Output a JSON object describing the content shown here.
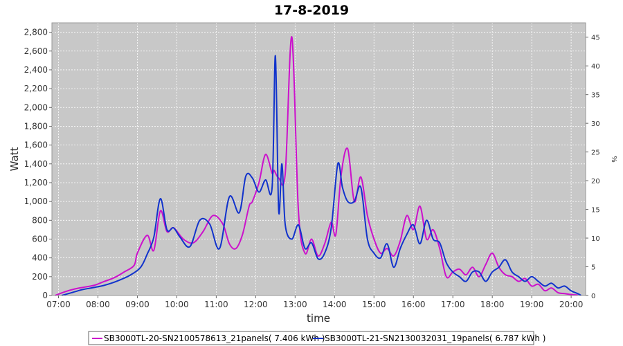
{
  "chart_data": {
    "type": "line",
    "title": "17-8-2019",
    "xlabel": "time",
    "ylabel": "Watt",
    "y2label": "%",
    "ylim": [
      0,
      2900
    ],
    "y2lim": [
      0,
      47.5
    ],
    "xlim": [
      "06:50",
      "20:22"
    ],
    "xticks": [
      "07:00",
      "08:00",
      "09:00",
      "10:00",
      "11:00",
      "12:00",
      "13:00",
      "14:00",
      "15:00",
      "16:00",
      "17:00",
      "18:00",
      "19:00",
      "20:00"
    ],
    "yticks": [
      "0",
      "200",
      "400",
      "600",
      "800",
      "1,000",
      "1,200",
      "1,400",
      "1,600",
      "1,800",
      "2,000",
      "2,200",
      "2,400",
      "2,600",
      "2,800"
    ],
    "y2ticks": [
      "0",
      "5",
      "10",
      "15",
      "20",
      "25",
      "30",
      "35",
      "40",
      "45"
    ],
    "grid": true,
    "legend": "bottom",
    "series": [
      {
        "name": "SB3000TL-20-SN2100578613_21panels( 7.406 kWh )",
        "color": "#cc11cc",
        "x": [
          "06:55",
          "07:10",
          "07:25",
          "07:40",
          "07:55",
          "08:10",
          "08:25",
          "08:40",
          "08:55",
          "09:00",
          "09:15",
          "09:25",
          "09:35",
          "09:45",
          "09:55",
          "10:10",
          "10:25",
          "10:40",
          "10:55",
          "11:10",
          "11:20",
          "11:30",
          "11:40",
          "11:50",
          "11:55",
          "12:05",
          "12:15",
          "12:25",
          "12:28",
          "12:35",
          "12:45",
          "12:55",
          "13:05",
          "13:15",
          "13:25",
          "13:35",
          "13:45",
          "13:55",
          "14:02",
          "14:10",
          "14:20",
          "14:30",
          "14:40",
          "14:50",
          "15:00",
          "15:10",
          "15:20",
          "15:30",
          "15:40",
          "15:50",
          "16:00",
          "16:10",
          "16:20",
          "16:30",
          "16:40",
          "16:50",
          "17:00",
          "17:10",
          "17:20",
          "17:30",
          "17:40",
          "17:50",
          "18:00",
          "18:10",
          "18:20",
          "18:30",
          "18:40",
          "18:50",
          "19:00",
          "19:10",
          "19:20",
          "19:30",
          "19:40",
          "19:50",
          "20:00",
          "20:10"
        ],
        "y": [
          0,
          40,
          70,
          90,
          110,
          150,
          190,
          250,
          320,
          450,
          640,
          480,
          900,
          680,
          720,
          600,
          560,
          680,
          850,
          760,
          550,
          500,
          650,
          950,
          1000,
          1200,
          1500,
          1300,
          1330,
          1250,
          1300,
          2750,
          900,
          450,
          600,
          420,
          550,
          780,
          650,
          1280,
          1560,
          1000,
          1260,
          850,
          600,
          450,
          500,
          420,
          580,
          850,
          700,
          950,
          600,
          700,
          500,
          200,
          250,
          280,
          220,
          300,
          200,
          330,
          450,
          300,
          220,
          200,
          150,
          180,
          100,
          120,
          50,
          80,
          30,
          20,
          10,
          5
        ]
      },
      {
        "name": "SB3000TL-21-SN2130032031_19panels( 6.787 kWh )",
        "color": "#1133cc",
        "x": [
          "07:05",
          "07:20",
          "07:35",
          "07:50",
          "08:05",
          "08:20",
          "08:35",
          "08:50",
          "09:05",
          "09:15",
          "09:25",
          "09:35",
          "09:45",
          "09:55",
          "10:05",
          "10:20",
          "10:35",
          "10:50",
          "11:05",
          "11:20",
          "11:35",
          "11:45",
          "11:55",
          "12:05",
          "12:15",
          "12:25",
          "12:30",
          "12:35",
          "12:40",
          "12:45",
          "12:55",
          "13:05",
          "13:15",
          "13:25",
          "13:35",
          "13:45",
          "13:55",
          "14:05",
          "14:12",
          "14:20",
          "14:30",
          "14:40",
          "14:50",
          "15:00",
          "15:10",
          "15:20",
          "15:30",
          "15:40",
          "15:50",
          "16:00",
          "16:10",
          "16:20",
          "16:30",
          "16:40",
          "16:50",
          "17:00",
          "17:10",
          "17:20",
          "17:30",
          "17:40",
          "17:50",
          "18:00",
          "18:10",
          "18:20",
          "18:30",
          "18:40",
          "18:50",
          "19:00",
          "19:10",
          "19:20",
          "19:30",
          "19:40",
          "19:50",
          "20:00",
          "20:10",
          "20:15"
        ],
        "y": [
          0,
          30,
          60,
          80,
          100,
          130,
          170,
          220,
          300,
          440,
          620,
          1030,
          700,
          720,
          620,
          520,
          800,
          760,
          500,
          1050,
          880,
          1270,
          1250,
          1100,
          1230,
          1150,
          2550,
          900,
          1400,
          750,
          600,
          750,
          500,
          560,
          390,
          450,
          720,
          1400,
          1150,
          1000,
          1000,
          1150,
          600,
          450,
          400,
          550,
          300,
          500,
          650,
          750,
          550,
          800,
          600,
          560,
          350,
          250,
          200,
          150,
          250,
          250,
          150,
          250,
          300,
          380,
          250,
          200,
          150,
          200,
          150,
          100,
          130,
          80,
          100,
          50,
          20,
          0
        ]
      }
    ]
  }
}
